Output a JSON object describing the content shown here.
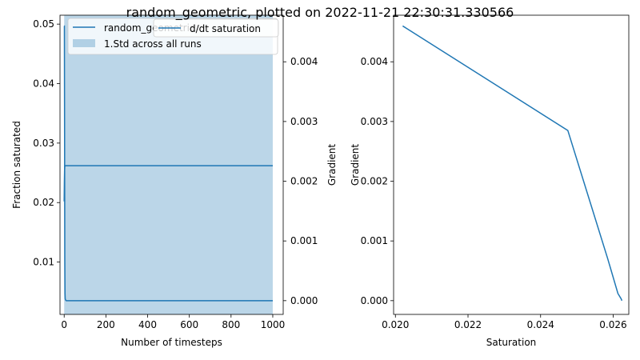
{
  "figure": {
    "suptitle": "random_geometric, plotted on 2022-11-21 22:30:31.330566"
  },
  "chart_data": [
    {
      "type": "line",
      "position": "left",
      "xlabel": "Number of timesteps",
      "ylabel": "Fraction saturated",
      "y2label": "Gradient",
      "xlim": [
        -20,
        1050
      ],
      "ylim": [
        0.0012,
        0.0515
      ],
      "y2lim": [
        -0.00023,
        0.00478
      ],
      "xticks": [
        0,
        200,
        400,
        600,
        800,
        1000
      ],
      "yticks": [
        0.01,
        0.02,
        0.03,
        0.04,
        0.05
      ],
      "y2ticks": [
        0.0,
        0.001,
        0.002,
        0.003,
        0.004
      ],
      "xtick_labels": [
        "0",
        "200",
        "400",
        "600",
        "800",
        "1000"
      ],
      "ytick_labels": [
        "0.01",
        "0.02",
        "0.03",
        "0.04",
        "0.05"
      ],
      "y2tick_labels": [
        "0.000",
        "0.001",
        "0.002",
        "0.003",
        "0.004"
      ],
      "legend": {
        "placement": "upper-left",
        "entries": [
          "random_geometric",
          "1.Std across all runs"
        ]
      },
      "legend2": {
        "placement": "upper-right",
        "entries": [
          "d/dt saturation"
        ]
      },
      "series": [
        {
          "name": "random_geometric",
          "axis": "left",
          "color": "#1f77b4",
          "x": [
            0,
            1,
            2,
            3,
            5,
            10,
            20,
            50,
            100,
            200,
            400,
            600,
            800,
            1000
          ],
          "y": [
            0.0202,
            0.0235,
            0.0255,
            0.0261,
            0.0262,
            0.0262,
            0.0262,
            0.0262,
            0.0262,
            0.0262,
            0.0262,
            0.0262,
            0.0262,
            0.0262
          ]
        },
        {
          "name": "1.Std across all runs",
          "axis": "left",
          "kind": "band",
          "color": "#1f77b4",
          "alpha": 0.3,
          "x": [
            0,
            1000
          ],
          "lower": [
            0.0012,
            0.0012
          ],
          "upper": [
            0.0515,
            0.0515
          ]
        },
        {
          "name": "d/dt saturation",
          "axis": "right",
          "color": "#1f77b4",
          "x": [
            0,
            1,
            2,
            3,
            4,
            5,
            7,
            10,
            20,
            50,
            100,
            200,
            400,
            600,
            800,
            1000
          ],
          "y": [
            0.0046,
            0.0046,
            0.0028,
            0.0007,
            0.00012,
            3e-05,
            1e-05,
            0.0,
            0.0,
            0.0,
            0.0,
            0.0,
            0.0,
            0.0,
            0.0,
            0.0
          ]
        }
      ]
    },
    {
      "type": "line",
      "position": "right",
      "xlabel": "Saturation",
      "ylabel": "Gradient",
      "xlim": [
        0.01995,
        0.02643
      ],
      "ylim": [
        -0.00023,
        0.00478
      ],
      "xticks": [
        0.02,
        0.022,
        0.024,
        0.026
      ],
      "yticks": [
        0.0,
        0.001,
        0.002,
        0.003,
        0.004
      ],
      "xtick_labels": [
        "0.020",
        "0.022",
        "0.024",
        "0.026"
      ],
      "ytick_labels": [
        "0.000",
        "0.001",
        "0.002",
        "0.003",
        "0.004"
      ],
      "series": [
        {
          "color": "#1f77b4",
          "x": [
            0.0202,
            0.02475,
            0.02585,
            0.02613,
            0.02622,
            0.02624
          ],
          "y": [
            0.0046,
            0.00285,
            0.0007,
            0.00012,
            3e-05,
            0.0
          ]
        }
      ]
    }
  ]
}
